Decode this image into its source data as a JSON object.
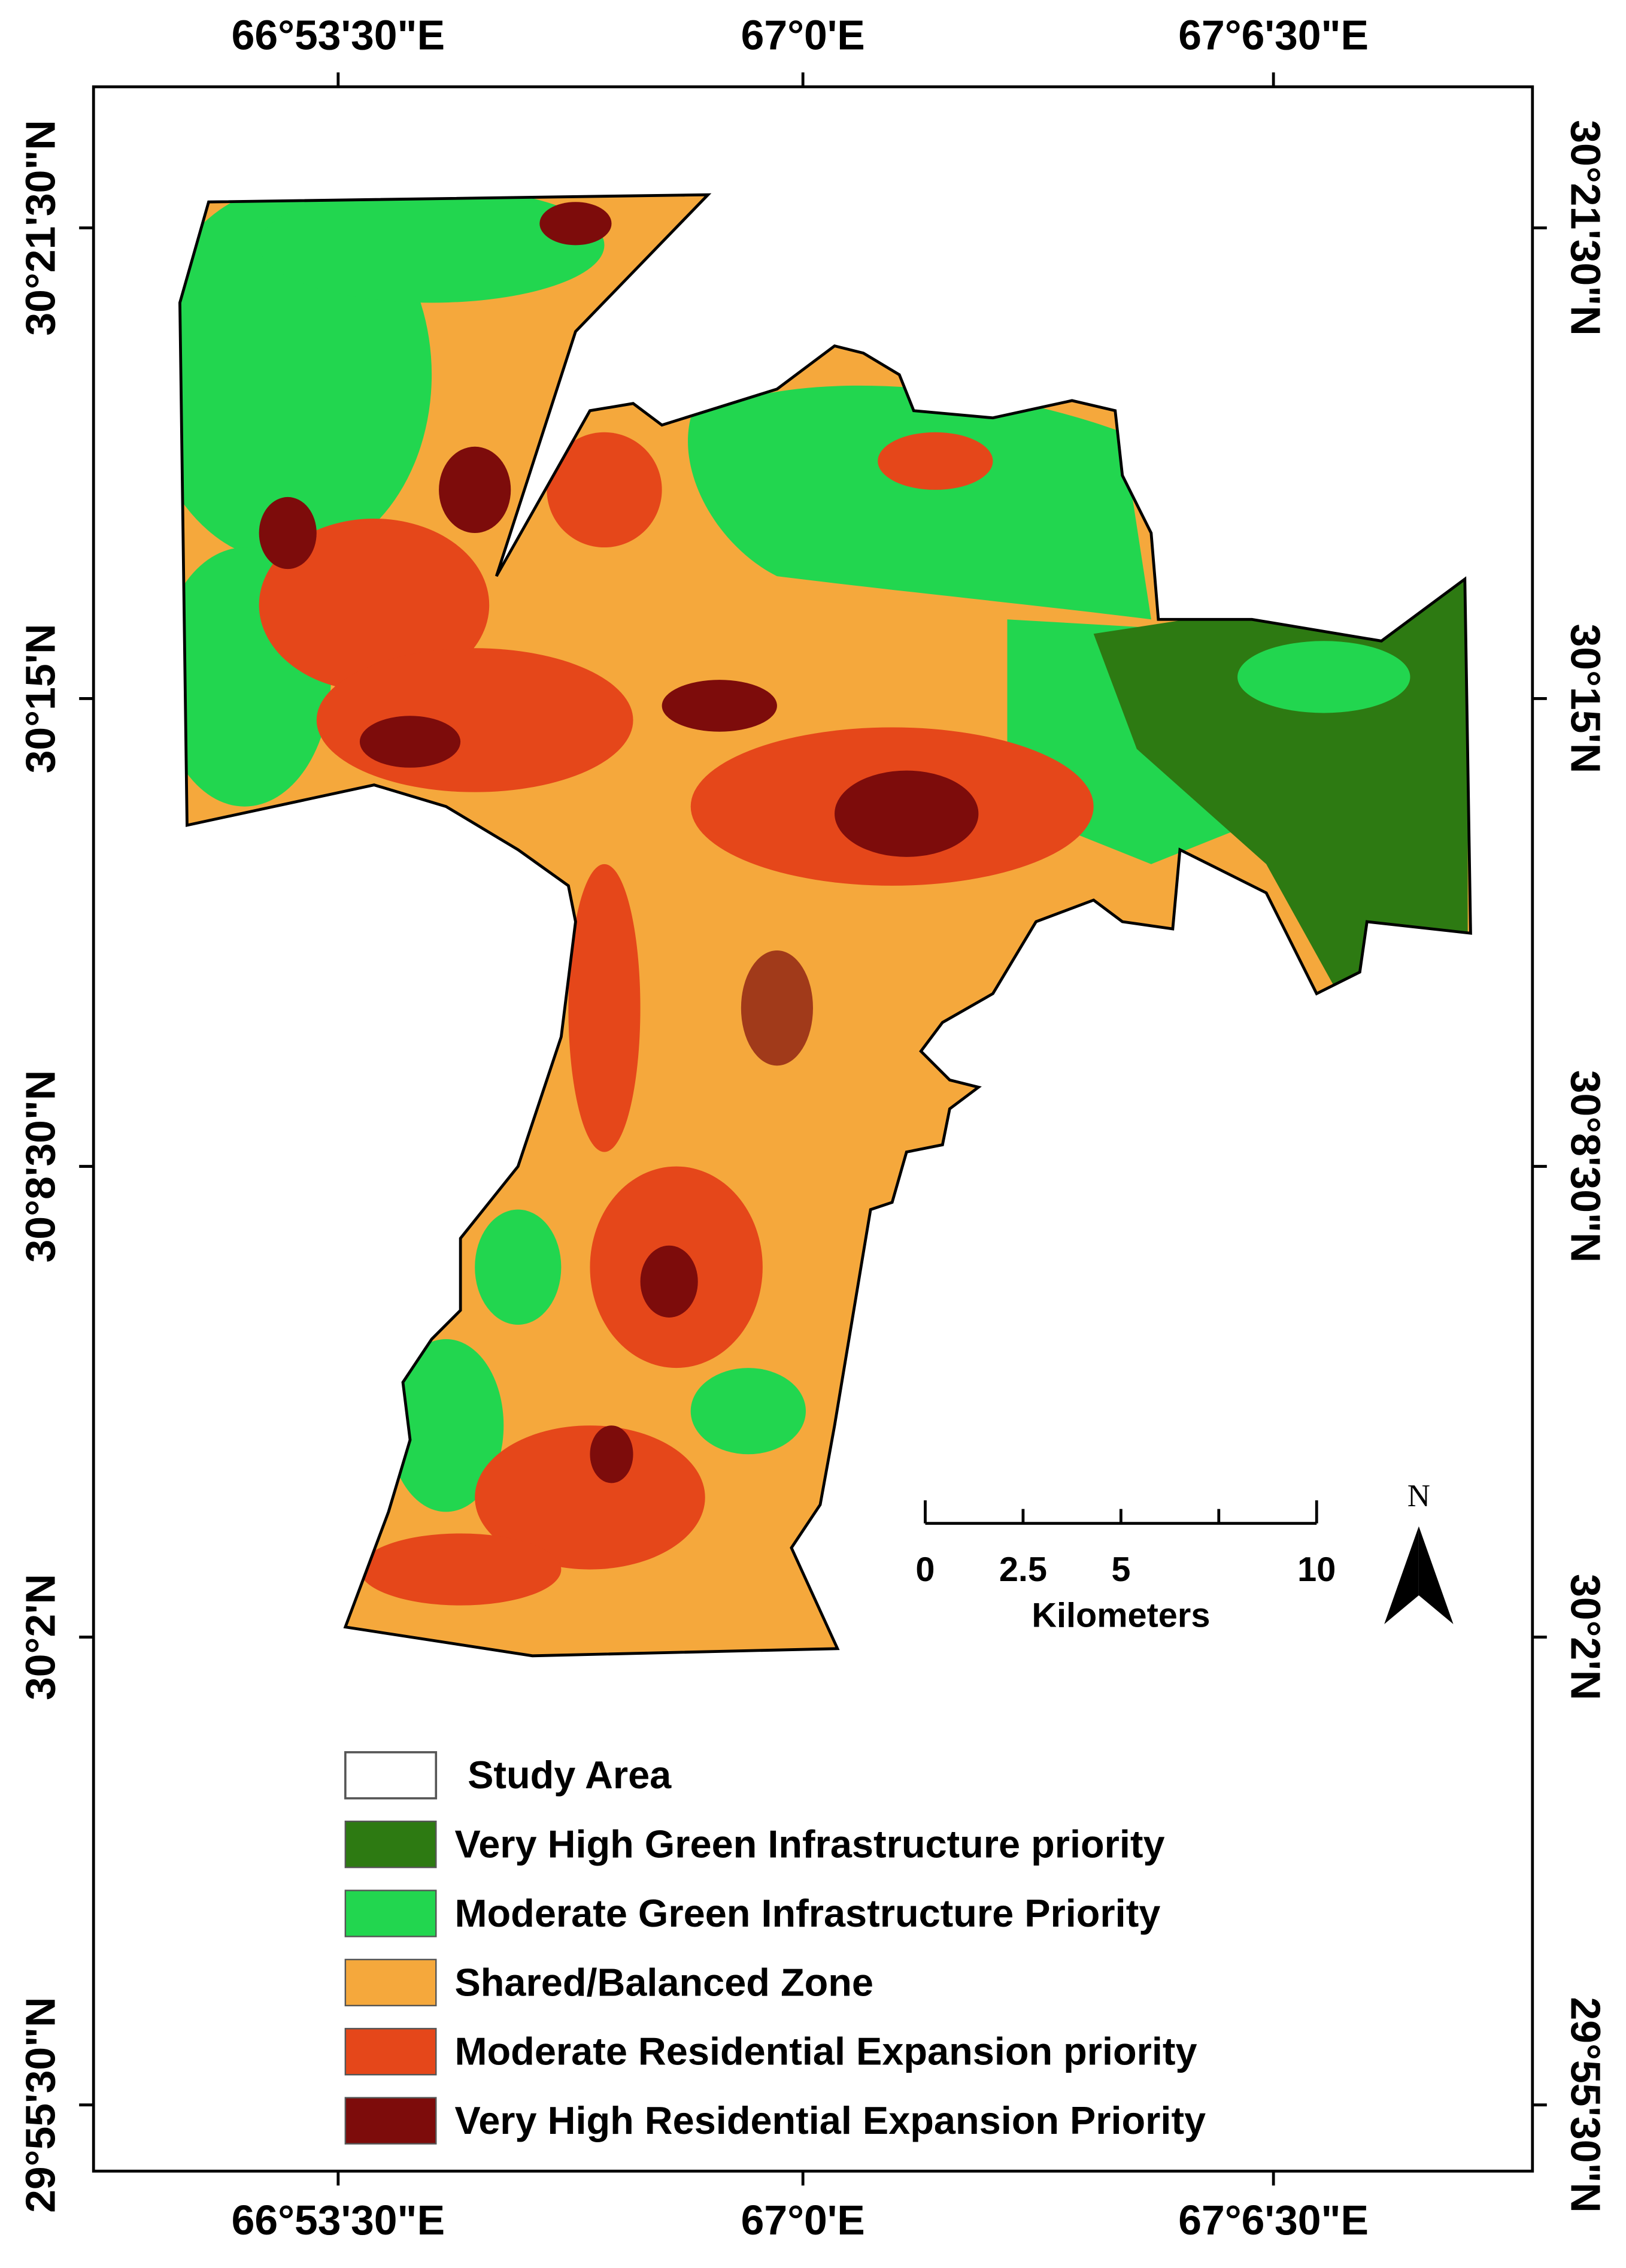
{
  "map": {
    "top_labels": [
      "66°53'30\"E",
      "67°0'E",
      "67°6'30\"E"
    ],
    "bottom_labels": [
      "66°53'30\"E",
      "67°0'E",
      "67°6'30\"E"
    ],
    "left_labels": [
      "30°21'30\"N",
      "30°15'N",
      "30°8'30\"N",
      "30°2'N",
      "29°55'30\"N"
    ],
    "right_labels": [
      "30°21'30\"N",
      "30°15'N",
      "30°8'30\"N",
      "30°2'N",
      "29°55'30\"N"
    ],
    "scale_bar": {
      "labels": [
        "0",
        "2.5",
        "5",
        "10"
      ],
      "unit": "Kilometers"
    },
    "north_arrow": "N",
    "legend": [
      "Study Area",
      "Very High Green Infrastructure priority",
      "Moderate Green Infrastructure Priority",
      "Shared/Balanced Zone",
      "Moderate Residential Expansion priority",
      "Very High Residential Expansion Priority"
    ]
  }
}
